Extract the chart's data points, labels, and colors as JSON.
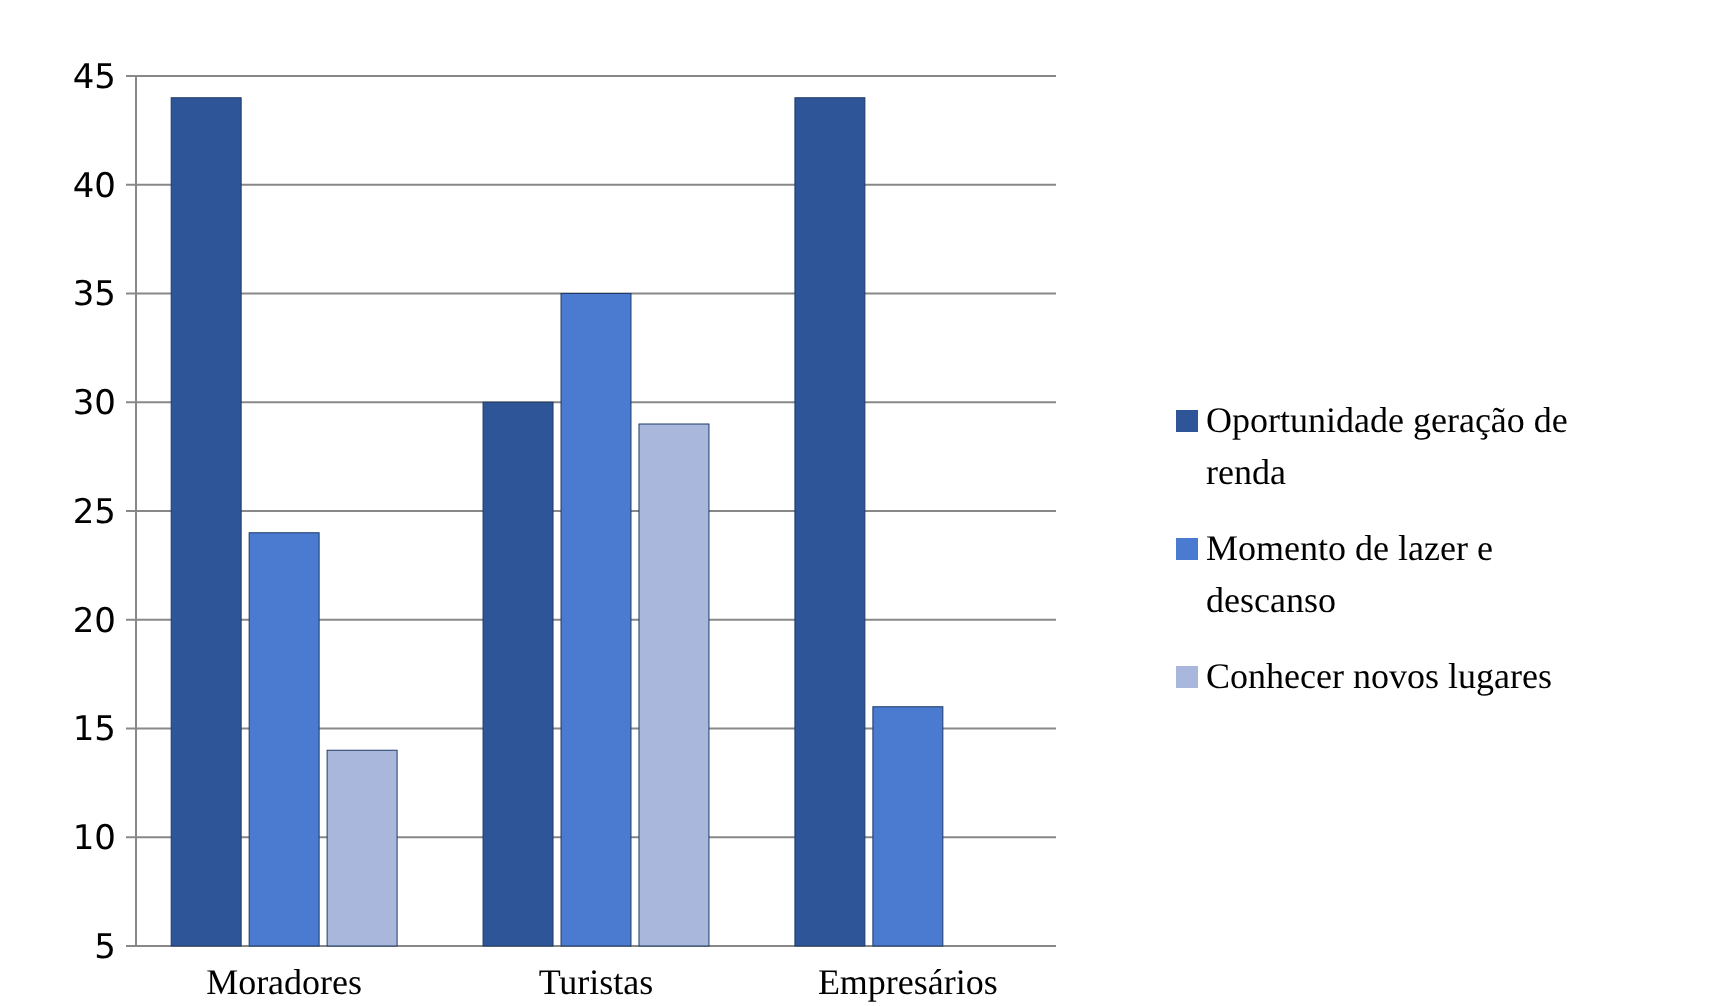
{
  "chart_data": {
    "type": "bar",
    "categories": [
      "Moradores",
      "Turistas",
      "Empresários"
    ],
    "series": [
      {
        "name": "Oportunidade geração de renda",
        "color": "#2e5597",
        "values": [
          44,
          30,
          44
        ]
      },
      {
        "name": "Momento de lazer e descanso",
        "color": "#4a7bd0",
        "values": [
          24,
          35,
          16
        ]
      },
      {
        "name": "Conhecer novos lugares",
        "color": "#a9b7dd",
        "values": [
          14,
          29,
          null
        ]
      }
    ],
    "ylim": [
      5,
      45
    ],
    "yticks": [
      5,
      10,
      15,
      20,
      25,
      30,
      35,
      40,
      45
    ],
    "grid": "y",
    "legend": "right"
  }
}
